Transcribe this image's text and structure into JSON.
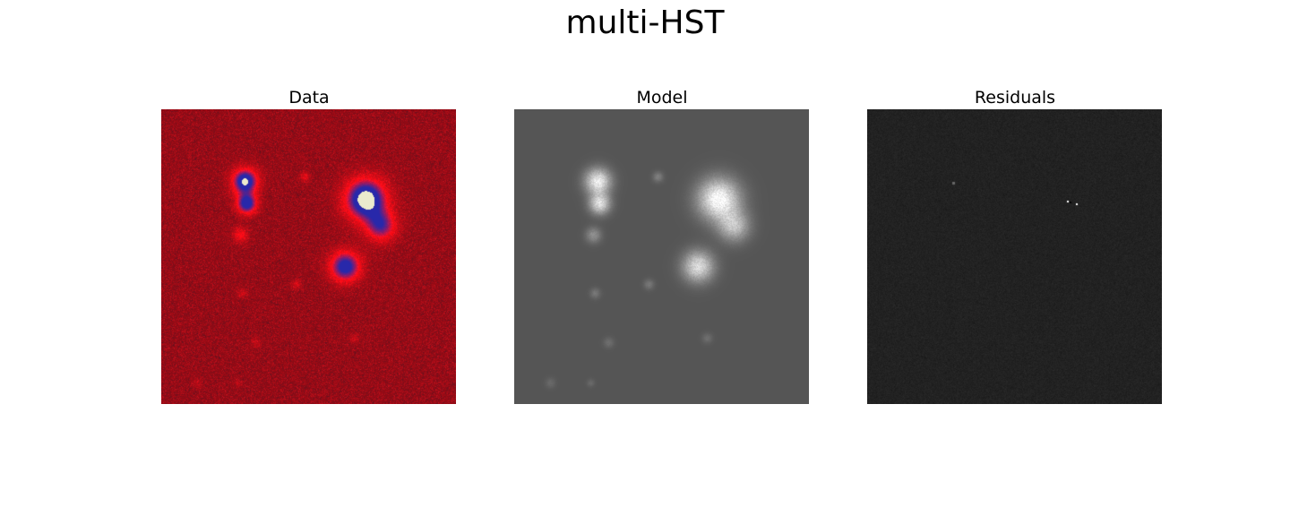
{
  "figure": {
    "title": "multi-HST"
  },
  "panels": [
    {
      "title": "Data",
      "colormap": "red-noise with blue/white cores",
      "background_color": "#c0101a",
      "core_color": "#1a1aa0",
      "peak_color": "#f0f0d0"
    },
    {
      "title": "Model",
      "colormap": "grayscale",
      "background_color": "#555555",
      "source_color": "#e8e8e8"
    },
    {
      "title": "Residuals",
      "colormap": "grayscale",
      "background_color": "#222222"
    }
  ]
}
